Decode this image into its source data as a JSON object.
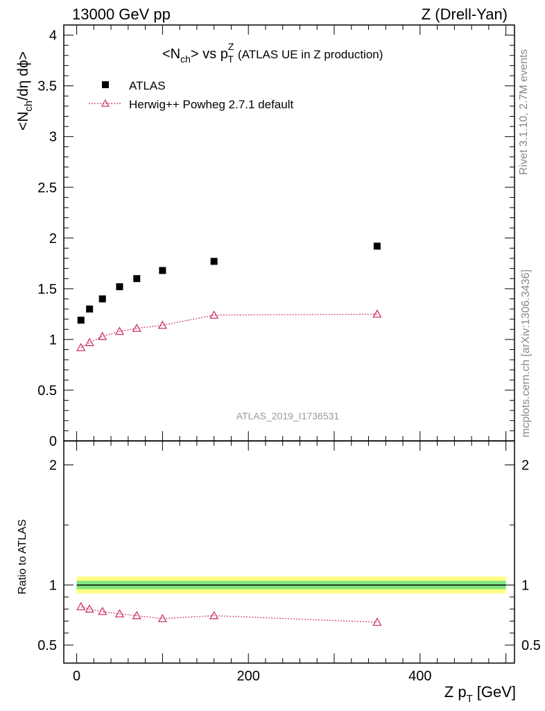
{
  "header": {
    "left": "13000 GeV pp",
    "right": "Z (Drell-Yan)"
  },
  "side_texts": {
    "rivet": "Rivet 3.1.10,  2.7M events",
    "source": "mcplots.cern.ch [arXiv:1306.3436]"
  },
  "watermark": "ATLAS_2019_I1736531",
  "colors": {
    "data": "#000000",
    "mc": "#cc3366",
    "band_outer": "#ffff80",
    "band_inner": "#7fe57f"
  },
  "chart_data": [
    {
      "type": "scatter",
      "title_parts": {
        "lt": "<N",
        "ch": "ch",
        "gt_vs": "> vs p",
        "T": "T",
        "Z": "Z",
        "rest": "(ATLAS UE in Z production)"
      },
      "ylabel_parts": {
        "a": "<N",
        "b": "ch",
        "c": "/dη dϕ>"
      },
      "xlim": [
        -15,
        510
      ],
      "ylim": [
        0,
        4.1
      ],
      "yticks": [
        "0",
        "0.5",
        "1",
        "1.5",
        "2",
        "2.5",
        "3",
        "3.5",
        "4"
      ],
      "ytick_values": [
        0,
        0.5,
        1,
        1.5,
        2,
        2.5,
        3,
        3.5,
        4
      ],
      "legend_position": "top-left",
      "series": [
        {
          "name": "ATLAS",
          "marker": "square",
          "x": [
            5,
            15,
            30,
            50,
            70,
            100,
            160,
            350
          ],
          "y": [
            1.19,
            1.3,
            1.4,
            1.52,
            1.6,
            1.68,
            1.77,
            1.92
          ]
        },
        {
          "name": "Herwig++ Powheg 2.7.1 default",
          "marker": "triangle",
          "x": [
            5,
            15,
            30,
            50,
            70,
            100,
            160,
            350
          ],
          "y": [
            0.92,
            0.97,
            1.03,
            1.08,
            1.11,
            1.14,
            1.24,
            1.25
          ]
        }
      ]
    },
    {
      "type": "scatter",
      "ylabel": "Ratio to ATLAS",
      "xlabel_parts": {
        "a": "Z p",
        "b": "T",
        "c": "[GeV]"
      },
      "xlim": [
        -15,
        510
      ],
      "ylim": [
        0.35,
        2.2
      ],
      "yticks": [
        "0.5",
        "1",
        "2"
      ],
      "ytick_values": [
        0.5,
        1,
        2
      ],
      "xticks": [
        "0",
        "200",
        "400"
      ],
      "xtick_values": [
        0,
        200,
        400
      ],
      "series": [
        {
          "name": "Herwig++ Powheg 2.7.1 default",
          "marker": "triangle",
          "x": [
            5,
            15,
            30,
            50,
            70,
            100,
            160,
            350
          ],
          "y": [
            0.82,
            0.8,
            0.78,
            0.76,
            0.745,
            0.72,
            0.745,
            0.69
          ]
        }
      ]
    }
  ]
}
